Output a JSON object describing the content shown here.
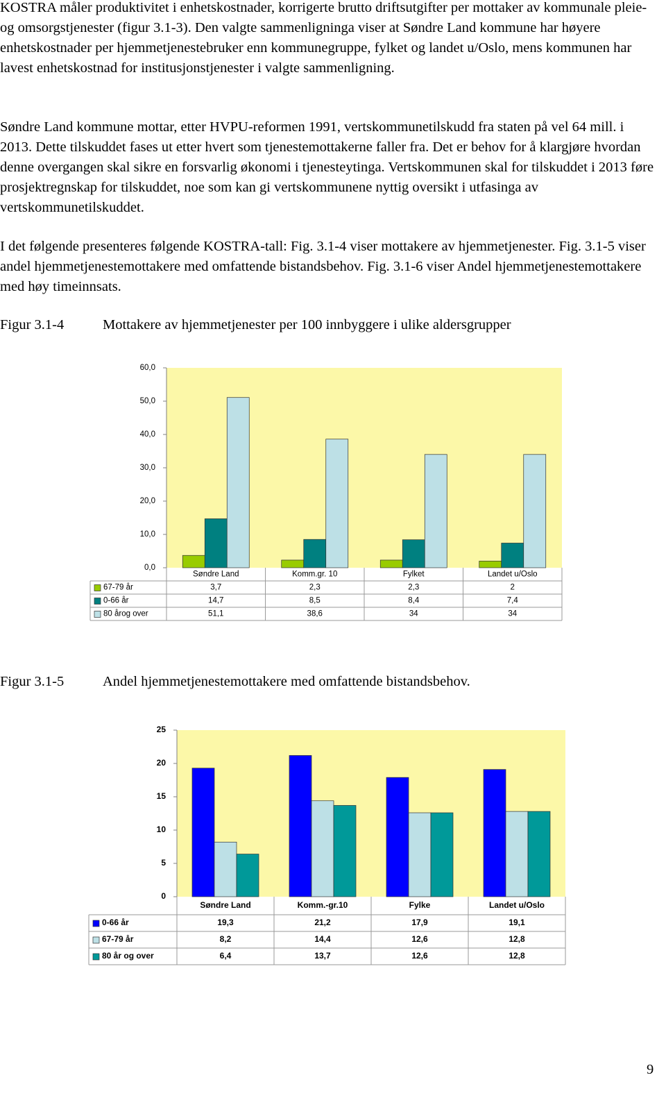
{
  "paragraphs": [
    "KOSTRA måler produktivitet i enhetskostnader, korrigerte brutto driftsutgifter per mottaker av kommunale pleie- og omsorgstjenester (figur 3.1-3). Den valgte sammenligninga viser at Søndre Land kommune har høyere enhetskostnader per hjemmetjenestebruker enn kommunegruppe, fylket og landet u/Oslo, mens kommunen har lavest enhetskostnad for institusjonstjenester i valgte sammenligning.",
    "Søndre Land kommune mottar, etter HVPU-reformen 1991, vertskommunetilskudd fra staten på vel 64 mill. i 2013. Dette tilskuddet fases ut etter hvert som tjenestemottakerne faller fra. Det er behov for å klargjøre hvordan denne overgangen skal sikre en forsvarlig økonomi i tjenesteytinga. Vertskommunen skal for tilskuddet i 2013 føre prosjektregnskap for tilskuddet, noe som kan gi vertskommunene nyttig oversikt i utfasinga av vertskommunetilskuddet.",
    "I det følgende presenteres følgende KOSTRA-tall: Fig. 3.1-4 viser mottakere av hjemmetjenester. Fig. 3.1-5 viser andel hjemmetjenestemottakere med omfattende bistandsbehov. Fig. 3.1-6 viser Andel hjemmetjenestemottakere med høy timeinnsats."
  ],
  "figures": [
    {
      "label": "Figur 3.1-4",
      "caption": "Mottakere av hjemmetjenester per 100 innbyggere i ulike aldersgrupper"
    },
    {
      "label": "Figur 3.1-5",
      "caption": "Andel hjemmetjenestemottakere med omfattende bistandsbehov."
    }
  ],
  "page_number": "9",
  "chart_data": [
    {
      "type": "bar",
      "categories": [
        "Søndre Land",
        "Komm.gr. 10",
        "Fylket",
        "Landet u/Oslo"
      ],
      "series": [
        {
          "name": "67-79 år",
          "color": "#99cc00",
          "values": [
            3.7,
            2.3,
            2.3,
            2
          ],
          "value_labels": [
            "3,7",
            "2,3",
            "2,3",
            "2"
          ]
        },
        {
          "name": "0-66 år",
          "color": "#008080",
          "values": [
            14.7,
            8.5,
            8.4,
            7.4
          ],
          "value_labels": [
            "14,7",
            "8,5",
            "8,4",
            "7,4"
          ]
        },
        {
          "name": "80 årog over",
          "color": "#bde0e6",
          "values": [
            51.1,
            38.6,
            34,
            34
          ],
          "value_labels": [
            "51,1",
            "38,6",
            "34",
            "34"
          ]
        }
      ],
      "ylim": [
        0,
        60
      ],
      "yticks": [
        {
          "value": 0,
          "label": "0,0"
        },
        {
          "value": 10,
          "label": "10,0"
        },
        {
          "value": 20,
          "label": "20,0"
        },
        {
          "value": 30,
          "label": "30,0"
        },
        {
          "value": 40,
          "label": "40,0"
        },
        {
          "value": 50,
          "label": "50,0"
        },
        {
          "value": 60,
          "label": "60,0"
        }
      ],
      "grid": false,
      "background": "#fcf8a8"
    },
    {
      "type": "bar",
      "categories": [
        "Søndre Land",
        "Komm.-gr.10",
        "Fylke",
        "Landet u/Oslo"
      ],
      "series": [
        {
          "name": "0-66 år",
          "color": "#0000ff",
          "values": [
            19.3,
            21.2,
            17.9,
            19.1
          ],
          "value_labels": [
            "19,3",
            "21,2",
            "17,9",
            "19,1"
          ]
        },
        {
          "name": "67-79 år",
          "color": "#bde0e6",
          "values": [
            8.2,
            14.4,
            12.6,
            12.8
          ],
          "value_labels": [
            "8,2",
            "14,4",
            "12,6",
            "12,8"
          ]
        },
        {
          "name": "80 år og over",
          "color": "#009999",
          "values": [
            6.4,
            13.7,
            12.6,
            12.8
          ],
          "value_labels": [
            "6,4",
            "13,7",
            "12,6",
            "12,8"
          ]
        }
      ],
      "ylim": [
        0,
        25
      ],
      "yticks": [
        0,
        5,
        10,
        15,
        20,
        25
      ],
      "grid": false,
      "background": "#fcf8a8"
    }
  ]
}
